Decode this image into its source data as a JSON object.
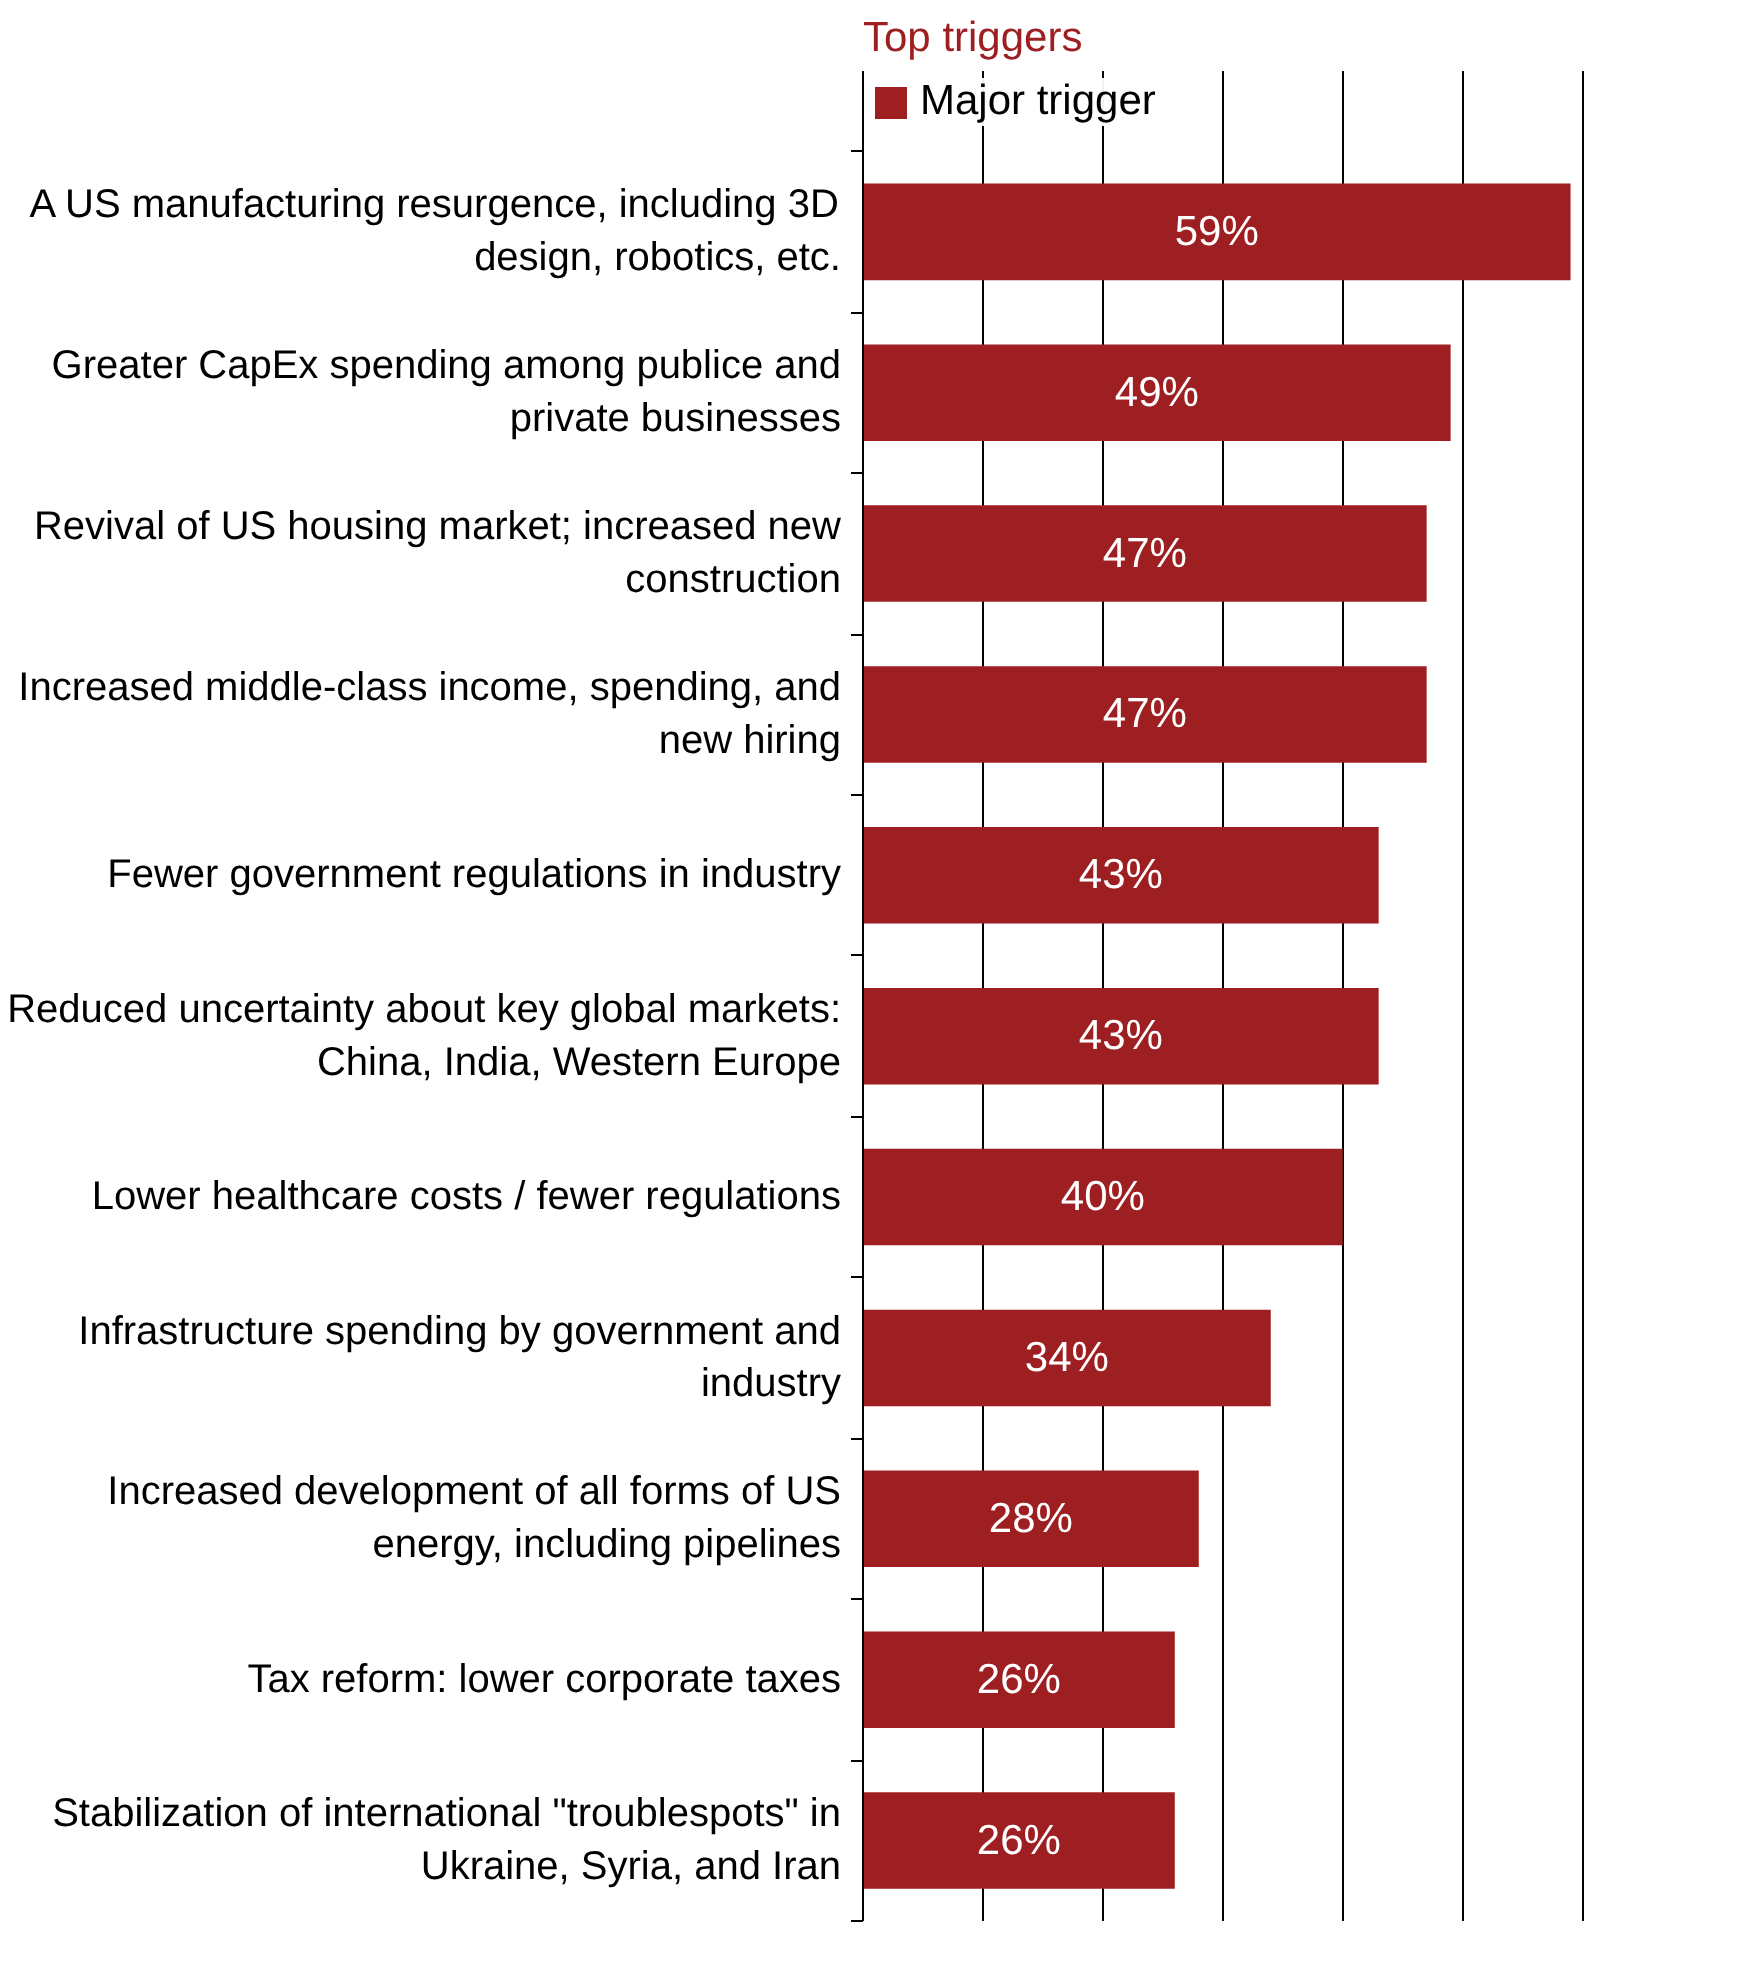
{
  "chart_data": {
    "type": "bar",
    "orientation": "horizontal",
    "title": "Top triggers",
    "categories": [
      "A US manufacturing resurgence, including 3D\ndesign, robotics, etc.",
      "Greater CapEx spending among publice and\nprivate businesses",
      "Revival of US housing market; increased new\nconstruction",
      "Increased middle-class income, spending, and\nnew hiring",
      "Fewer government regulations in industry",
      "Reduced uncertainty about key global markets:\nChina, India, Western Europe",
      "Lower healthcare costs / fewer regulations",
      "Infrastructure spending by government and\nindustry",
      "Increased development of all forms of US\nenergy, including pipelines",
      "Tax reform: lower corporate taxes",
      "Stabilization of international \"troublespots\" in\nUkraine, Syria, and Iran"
    ],
    "series": [
      {
        "name": "Major trigger",
        "color": "#9e1f22",
        "values": [
          59,
          49,
          47,
          47,
          43,
          43,
          40,
          34,
          28,
          26,
          26
        ],
        "value_labels": [
          "59%",
          "49%",
          "47%",
          "47%",
          "43%",
          "43%",
          "40%",
          "34%",
          "28%",
          "26%",
          "26%"
        ]
      }
    ],
    "grid": "x",
    "legend": "top",
    "tick_labels": "y"
  }
}
